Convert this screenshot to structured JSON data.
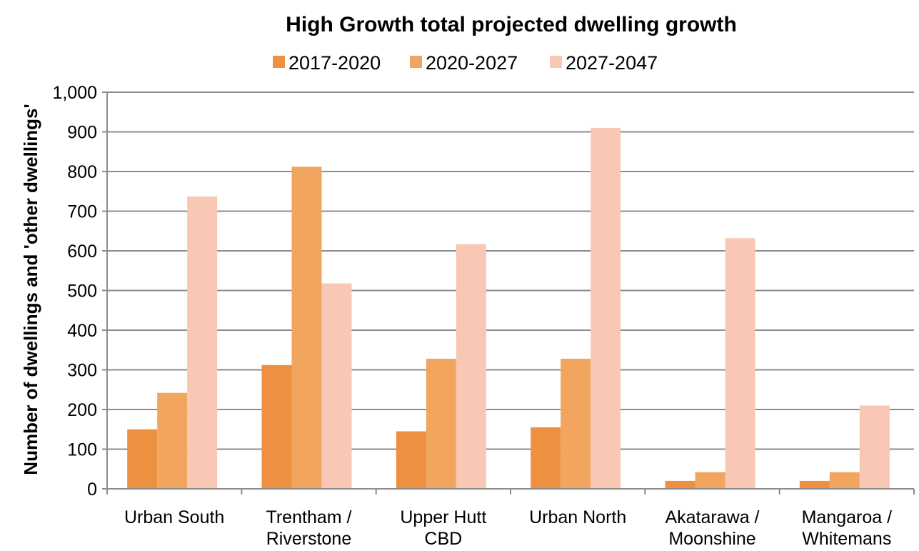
{
  "chart_data": {
    "type": "bar",
    "title": "High Growth total projected dwelling growth",
    "xlabel": "",
    "ylabel": "Number of dwellings and 'other dwellings'",
    "ylim": [
      0,
      1000
    ],
    "yticks": [
      "0",
      "100",
      "200",
      "300",
      "400",
      "500",
      "600",
      "700",
      "800",
      "900",
      "1,000"
    ],
    "grid": true,
    "legend_position": "top",
    "categories": [
      [
        "Urban South"
      ],
      [
        "Trentham /",
        "Riverstone"
      ],
      [
        "Upper Hutt",
        "CBD"
      ],
      [
        "Urban North"
      ],
      [
        "Akatarawa /",
        "Moonshine"
      ],
      [
        "Mangaroa /",
        "Whitemans"
      ]
    ],
    "series": [
      {
        "name": "2017-2020",
        "color": "#ed9140",
        "values": [
          150,
          312,
          145,
          155,
          20,
          20
        ]
      },
      {
        "name": "2020-2027",
        "color": "#f2a55f",
        "values": [
          242,
          812,
          328,
          328,
          42,
          42
        ]
      },
      {
        "name": "2027-2047",
        "color": "#f8c8b5",
        "values": [
          737,
          518,
          617,
          910,
          632,
          210
        ]
      }
    ]
  }
}
